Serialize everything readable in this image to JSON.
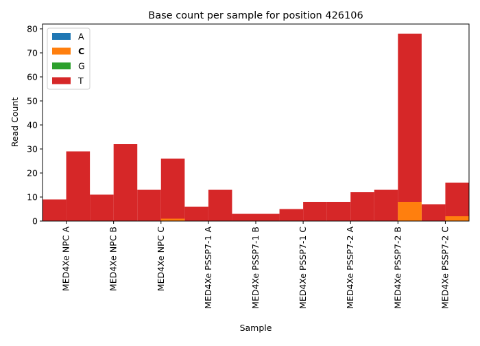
{
  "chart_data": {
    "type": "bar",
    "title": "Base count per sample for position 426106",
    "xlabel": "Sample",
    "ylabel": "Read Count",
    "ylim": [
      0,
      82
    ],
    "yticks": [
      0,
      10,
      20,
      30,
      40,
      50,
      60,
      70,
      80
    ],
    "categories": [
      "MED4Xe NPC A",
      "MED4Xe NPC B",
      "MED4Xe NPC C",
      "MED4Xe PSSP7-1 A",
      "MED4Xe PSSP7-1 B",
      "MED4Xe PSSP7-1 C",
      "MED4Xe PSSP7-2 A",
      "MED4Xe PSSP7-2 B",
      "MED4Xe PSSP7-2 C"
    ],
    "stacked": true,
    "grouping": "two stacked bars per sample",
    "series": [
      {
        "name": "A",
        "color": "#1f77b4",
        "first_bar": [
          0,
          0,
          0,
          0,
          0,
          0,
          0,
          0,
          0
        ],
        "second_bar": [
          0,
          0,
          0,
          0,
          0,
          0,
          0,
          0,
          0
        ]
      },
      {
        "name": "C",
        "color": "#ff7f0e",
        "first_bar": [
          0,
          0,
          0,
          0,
          0,
          0,
          0,
          0,
          0
        ],
        "second_bar": [
          0,
          0,
          1,
          0,
          0,
          0,
          0,
          8,
          2
        ]
      },
      {
        "name": "G",
        "color": "#2ca02c",
        "first_bar": [
          0,
          0,
          0,
          0,
          0,
          0,
          0,
          0,
          0
        ],
        "second_bar": [
          0,
          0,
          0,
          0,
          0,
          0,
          0,
          0,
          0
        ]
      },
      {
        "name": "T",
        "color": "#d62728",
        "first_bar": [
          9,
          11,
          13,
          6,
          3,
          5,
          8,
          13,
          7
        ],
        "second_bar": [
          29,
          32,
          25,
          13,
          3,
          8,
          12,
          70,
          14
        ]
      }
    ],
    "legend": {
      "position": "upper-left",
      "bold_entry": "C"
    },
    "grid": false
  }
}
